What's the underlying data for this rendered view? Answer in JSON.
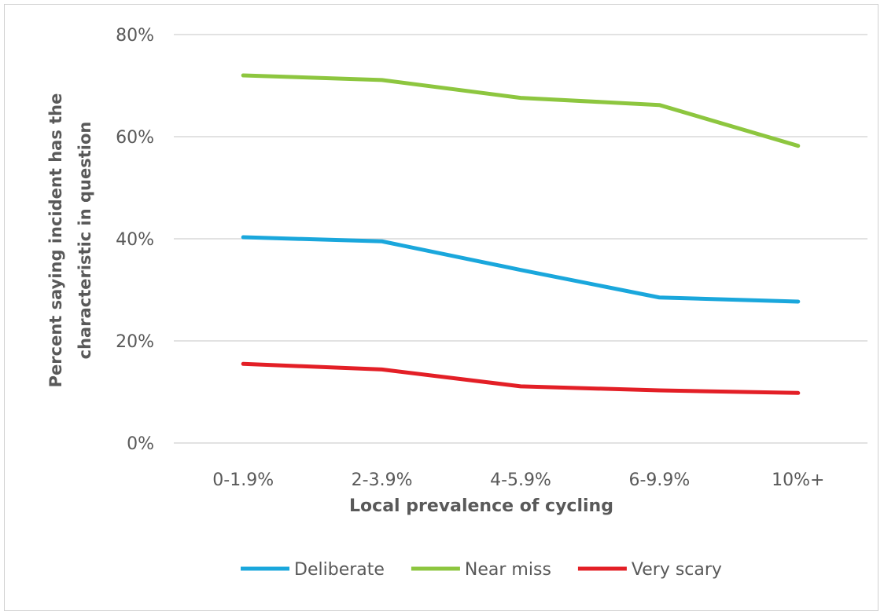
{
  "chart_data": {
    "type": "line",
    "categories": [
      "0-1.9%",
      "2-3.9%",
      "4-5.9%",
      "6-9.9%",
      "10%+"
    ],
    "series": [
      {
        "name": "Deliberate",
        "color": "#1aa7dc",
        "values": [
          40.3,
          39.5,
          33.9,
          28.5,
          27.7
        ]
      },
      {
        "name": "Near miss",
        "color": "#8dc63f",
        "values": [
          72.0,
          71.1,
          67.6,
          66.2,
          58.2
        ]
      },
      {
        "name": "Very scary",
        "color": "#e31f26",
        "values": [
          15.5,
          14.4,
          11.1,
          10.3,
          9.8
        ]
      }
    ],
    "xlabel": "Local prevalence of cycling",
    "ylabel_lines": [
      "Percent  saying incident has the",
      "characteristic  in question"
    ],
    "ylim": [
      0,
      80
    ],
    "yticks": [
      0,
      20,
      40,
      60,
      80
    ],
    "ytick_labels": [
      "0%",
      "20%",
      "40%",
      "60%",
      "80%"
    ],
    "grid": true,
    "legend_position": "bottom"
  }
}
